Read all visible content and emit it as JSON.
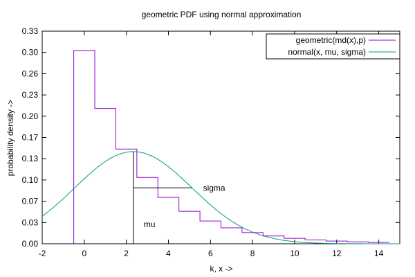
{
  "chart_data": {
    "type": "line",
    "title": "geometric PDF using normal approximation",
    "xlabel": "k, x ->",
    "ylabel": "probability density ->",
    "xlim": [
      -2,
      15
    ],
    "ylim": [
      0,
      0.33
    ],
    "x_ticks": [
      -2,
      0,
      2,
      4,
      6,
      8,
      10,
      12,
      14
    ],
    "x_tick_labels": [
      "-2",
      "0",
      "2",
      "4",
      "6",
      "8",
      "10",
      "12",
      "14"
    ],
    "y_ticks": [
      0,
      0.033,
      0.066,
      0.099,
      0.132,
      0.165,
      0.198,
      0.231,
      0.264,
      0.297,
      0.33
    ],
    "y_tick_labels": [
      "0.00",
      "0.03",
      "0.07",
      "0.10",
      "0.13",
      "0.17",
      "0.20",
      "0.23",
      "0.26",
      "0.30",
      "0.33"
    ],
    "grid": false,
    "legend_position": "top-right",
    "series": [
      {
        "name": "geometric(md(x),p)",
        "kind": "step",
        "color": "#9400d3",
        "parameter_p": 0.3,
        "k": [
          0,
          1,
          2,
          3,
          4,
          5,
          6,
          7,
          8,
          9,
          10,
          11,
          12,
          13,
          14
        ],
        "values": [
          0.3,
          0.21,
          0.147,
          0.1029,
          0.072,
          0.0504,
          0.0353,
          0.0247,
          0.0173,
          0.0121,
          0.0085,
          0.0059,
          0.0042,
          0.0029,
          0.002
        ]
      },
      {
        "name": "normal(x, mu, sigma)",
        "kind": "curve",
        "color": "#009e73",
        "mu": 2.333,
        "sigma": 2.789
      }
    ],
    "annotations": [
      {
        "label": "mu",
        "x": 2.333
      },
      {
        "label": "sigma",
        "x_start": 2.333,
        "x_end": 5.122
      }
    ]
  }
}
